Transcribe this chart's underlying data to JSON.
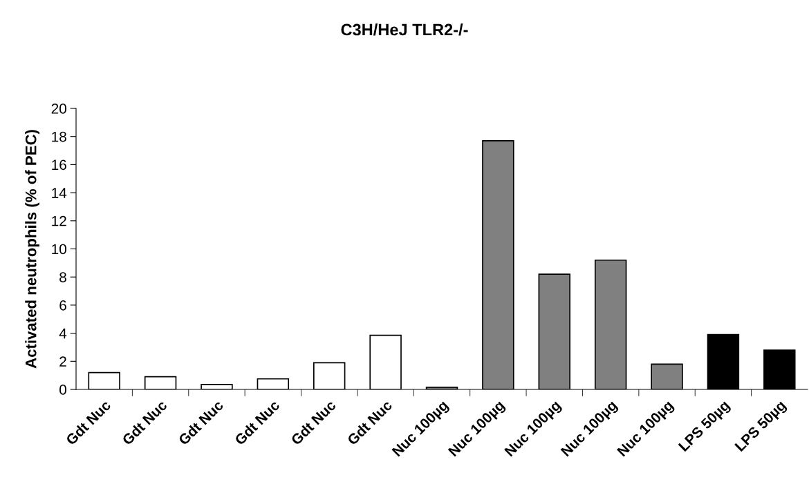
{
  "chart_data": {
    "type": "bar",
    "title": "C3H/HeJ TLR2-/-",
    "ylabel": "Activated neutrophils (% of PEC)",
    "categories": [
      "Gdt Nuc",
      "Gdt Nuc",
      "Gdt Nuc",
      "Gdt Nuc",
      "Gdt Nuc",
      "Gdt Nuc",
      "Nuc 100µg",
      "Nuc 100µg",
      "Nuc 100µg",
      "Nuc 100µg",
      "Nuc 100µg",
      "LPS 50µg",
      "LPS 50µg"
    ],
    "values": [
      1.2,
      0.9,
      0.35,
      0.75,
      1.9,
      3.85,
      0.15,
      17.7,
      8.2,
      9.2,
      1.8,
      3.9,
      2.8
    ],
    "colors": [
      "#ffffff",
      "#ffffff",
      "#ffffff",
      "#ffffff",
      "#ffffff",
      "#ffffff",
      "#808080",
      "#808080",
      "#808080",
      "#808080",
      "#808080",
      "#000000",
      "#000000"
    ],
    "ylim": [
      0,
      20
    ],
    "yticks": [
      0,
      2,
      4,
      6,
      8,
      10,
      12,
      14,
      16,
      18,
      20
    ],
    "grid": false,
    "legend": false
  }
}
